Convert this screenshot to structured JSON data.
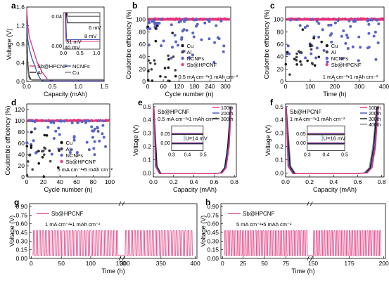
{
  "colors": {
    "sb": "#e0307a",
    "ncnf": "#3f51b5",
    "cu": "#1a1a1a",
    "al": "#1a1a1a",
    "cu_dot": "#1a1a1a",
    "al_dot": "#2a2a2a",
    "ncnf_dot": "#5a63c8",
    "sb_dot": "#e8408a"
  },
  "panels": [
    {
      "letter": "a",
      "xlabel": "Capacity (mAh)",
      "ylabel": "Voltage (V)",
      "xticks": [
        "0.0",
        "0.5",
        "1.0",
        "1.5"
      ],
      "yticks": [
        "0.0",
        "0.4",
        "0.8",
        "1.2",
        "1.6"
      ],
      "legend": [
        "Sb@HPCNF",
        "NCNFs",
        "Al",
        "Cu"
      ],
      "inset": {
        "xticks": [
          "0.0",
          "0.5",
          "1.0"
        ],
        "yticks": [
          "0.00",
          "0.04"
        ],
        "ann": [
          "6 mV",
          "8 mV",
          "31 mV",
          "40 mV"
        ]
      }
    },
    {
      "letter": "b",
      "xlabel": "Cycle number (n)",
      "ylabel": "Coulombic efficiency (%)",
      "xticks": [
        "0",
        "60",
        "120",
        "180",
        "240",
        "300"
      ],
      "yticks": [
        "0",
        "20",
        "40",
        "60",
        "80",
        "100"
      ],
      "legend": [
        "Cu",
        "Al",
        "NCNFs",
        "Sb@HPCNF"
      ],
      "cond": "0.5 mA cm⁻²•1 mAh cm⁻²"
    },
    {
      "letter": "c",
      "xlabel": "Time (h)",
      "ylabel": "Coulombic efficiency (%)",
      "xticks": [
        "0",
        "100",
        "200",
        "300",
        "400"
      ],
      "yticks": [
        "0",
        "20",
        "40",
        "60",
        "80",
        "100"
      ],
      "legend": [
        "Cu",
        "Al",
        "NCNFs",
        "Sb@HPCNF"
      ],
      "cond": "1 mA cm⁻²•1 mAh cm⁻²"
    },
    {
      "letter": "d",
      "xlabel": "Cycle number (n)",
      "ylabel": "Coulombic efficiency (%)",
      "xticks": [
        "0",
        "20",
        "40",
        "60",
        "80",
        "100"
      ],
      "yticks": [
        "0",
        "20",
        "40",
        "60",
        "80",
        "100",
        "120"
      ],
      "legend": [
        "Cu",
        "Al",
        "NCNFs",
        "Sb@HPCNF"
      ],
      "cond": "5 mA cm⁻²•5 mAh cm⁻²"
    },
    {
      "letter": "e",
      "xlabel": "Capacity (mAh)",
      "ylabel": "Voltage (V)",
      "xticks": [
        "0.0",
        "0.2",
        "0.4",
        "0.6",
        "0.8"
      ],
      "yticks": [
        "0.0",
        "0.1",
        "0.2",
        "0.3",
        "0.4",
        "0.5"
      ],
      "title": "Sb@HPCNF",
      "cond": "0.5 mA cm⁻²•1 mAh cm⁻²",
      "legend": [
        "100th",
        "200th",
        "300th"
      ],
      "inset": {
        "xticks": [
          "0.3",
          "0.4",
          "0.5"
        ],
        "yticks": [
          "0.00",
          "0.05"
        ],
        "ann": "U=14 mV"
      }
    },
    {
      "letter": "f",
      "xlabel": "Capacity (mAh)",
      "ylabel": "Voltage (V)",
      "xticks": [
        "0.0",
        "0.2",
        "0.4",
        "0.6",
        "0.8"
      ],
      "yticks": [
        "0.0",
        "0.1",
        "0.2",
        "0.3",
        "0.4",
        "0.5"
      ],
      "title": "Sb@HPCNF",
      "cond": "1 mA cm⁻²•1 mAh cm⁻²",
      "legend": [
        "100th",
        "200th",
        "300th",
        "400th"
      ],
      "inset": {
        "xticks": [
          "0.3",
          "0.4",
          "0.5"
        ],
        "yticks": [
          "0.00",
          "0.05"
        ],
        "ann": "U=16 mV"
      }
    },
    {
      "letter": "g",
      "xlabel": "Time (h)",
      "ylabel": "Voltage (V)",
      "xticks": [
        "0",
        "50",
        "100",
        "150",
        "300",
        "350",
        "400"
      ],
      "yticks": [
        "0.00",
        "0.15",
        "0.30",
        "0.45",
        "0.60",
        "0.75",
        "0.90"
      ],
      "legend": [
        "Sb@HPCNF"
      ],
      "cond": "1 mA cm⁻²•1 mAh cm⁻²"
    },
    {
      "letter": "h",
      "xlabel": "Time (h)",
      "ylabel": "Voltage (V)",
      "xticks": [
        "0",
        "25",
        "50",
        "75",
        "150",
        "175",
        "200"
      ],
      "yticks": [
        "0.00",
        "0.15",
        "0.30",
        "0.45",
        "0.60",
        "0.75",
        "0.90"
      ],
      "legend": [
        "Sb@HPCNF"
      ],
      "cond": "5 mA cm⁻²•5 mAh cm⁻²"
    }
  ],
  "chart_data": [
    {
      "type": "line",
      "panel": "a",
      "xlim": [
        0,
        1.5
      ],
      "ylim": [
        0,
        1.6
      ],
      "series": [
        {
          "name": "Sb@HPCNF",
          "x": [
            0,
            0.02,
            0.05,
            0.1,
            0.15,
            0.2,
            0.3,
            0.4,
            0.5
          ],
          "y": [
            1.55,
            1.2,
            0.95,
            0.78,
            0.6,
            0.42,
            0.2,
            0.05,
            0.006
          ]
        },
        {
          "name": "NCNFs",
          "x": [
            0,
            0.02,
            0.05,
            0.1,
            0.15,
            0.2,
            0.25,
            0.3,
            0.32
          ],
          "y": [
            1.25,
            0.9,
            0.7,
            0.5,
            0.35,
            0.2,
            0.08,
            0.015,
            0.008
          ]
        },
        {
          "name": "Al",
          "x": [
            0,
            0.02,
            0.04,
            0.08,
            0.1
          ],
          "y": [
            0.9,
            0.4,
            0.15,
            0.04,
            0.031
          ]
        },
        {
          "name": "Cu",
          "x": [
            0,
            0.02,
            0.04,
            0.06,
            0.08
          ],
          "y": [
            0.6,
            0.3,
            0.1,
            0.045,
            0.04
          ]
        }
      ]
    },
    {
      "type": "scatter",
      "panel": "b",
      "xlim": [
        0,
        320
      ],
      "ylim": [
        0,
        120
      ]
    },
    {
      "type": "scatter",
      "panel": "c",
      "xlim": [
        0,
        400
      ],
      "ylim": [
        0,
        120
      ]
    },
    {
      "type": "scatter",
      "panel": "d",
      "xlim": [
        0,
        100
      ],
      "ylim": [
        0,
        120
      ]
    },
    {
      "type": "line",
      "panel": "e",
      "xlim": [
        0,
        0.82
      ],
      "ylim": [
        -0.03,
        0.52
      ]
    },
    {
      "type": "line",
      "panel": "f",
      "xlim": [
        0,
        0.82
      ],
      "ylim": [
        -0.03,
        0.52
      ]
    },
    {
      "type": "line",
      "panel": "g",
      "xlim": [
        0,
        400
      ],
      "ylim": [
        0,
        0.95
      ]
    },
    {
      "type": "line",
      "panel": "h",
      "xlim": [
        0,
        200
      ],
      "ylim": [
        0,
        0.95
      ]
    }
  ]
}
